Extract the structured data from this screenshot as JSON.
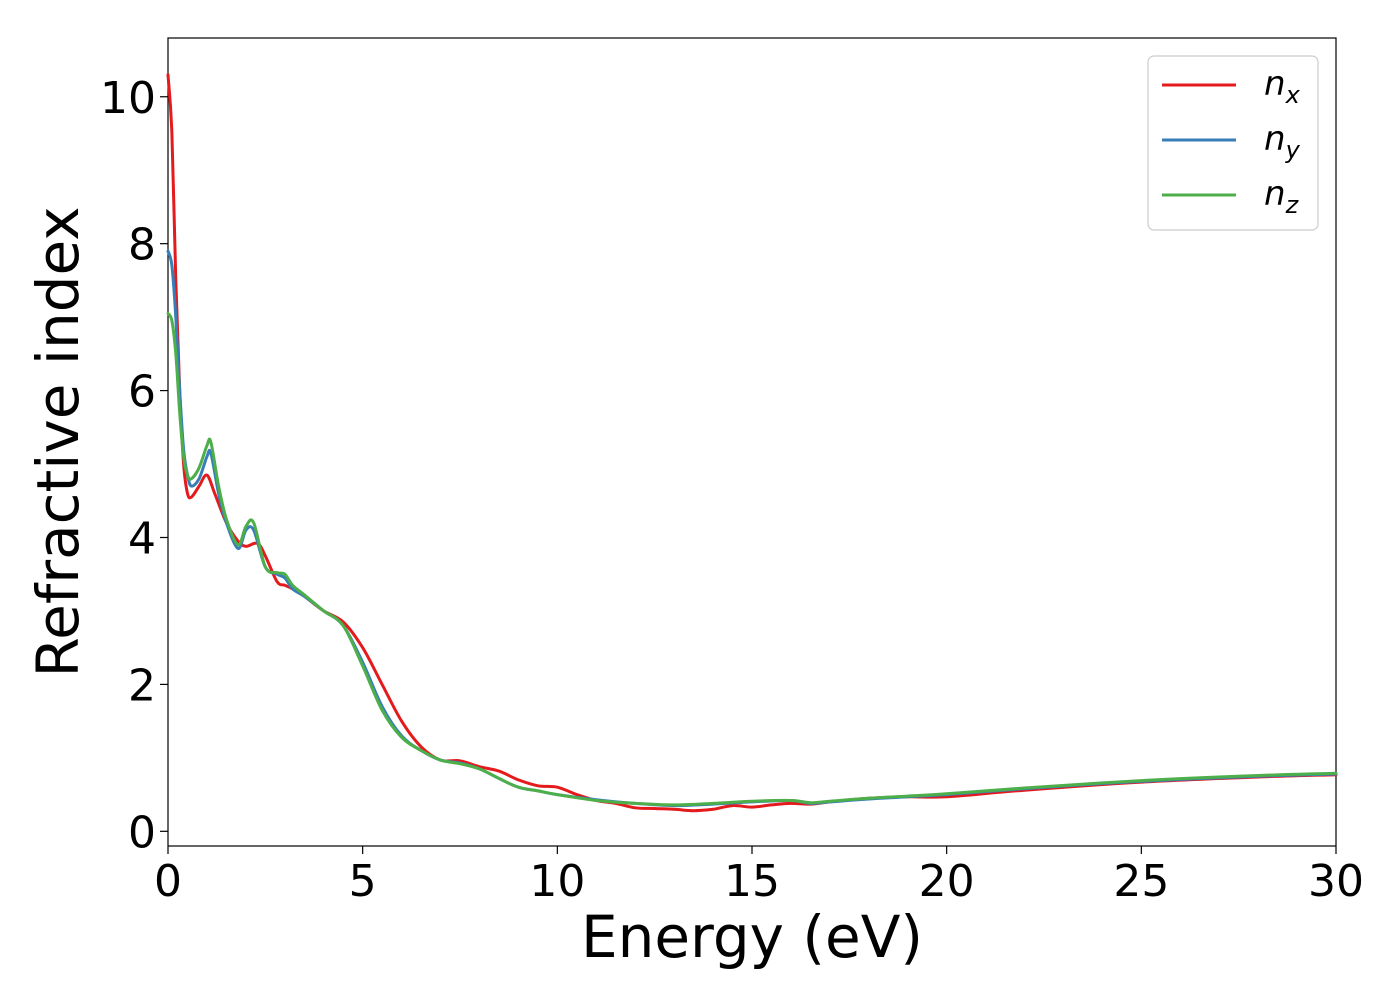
{
  "chart_data": {
    "type": "line",
    "title": "",
    "xlabel": "Energy (eV)",
    "ylabel": "Refractive index",
    "xlim": [
      0,
      30
    ],
    "ylim": [
      -0.2,
      10.8
    ],
    "xticks": [
      0,
      5,
      10,
      15,
      20,
      25,
      30
    ],
    "yticks": [
      0,
      2,
      4,
      6,
      8,
      10
    ],
    "grid": false,
    "legend_position": "top-right",
    "series": [
      {
        "name": "n_x",
        "legend_main": "n",
        "legend_sub": "x",
        "color": "#e41a1c",
        "x": [
          0,
          0.1,
          0.2,
          0.3,
          0.4,
          0.5,
          0.6,
          0.8,
          1.0,
          1.2,
          1.5,
          1.8,
          2.0,
          2.3,
          2.5,
          2.8,
          3.0,
          3.2,
          3.5,
          4.0,
          4.5,
          5.0,
          5.5,
          6.0,
          6.5,
          7.0,
          7.5,
          8.0,
          8.5,
          9.0,
          9.5,
          10.0,
          10.5,
          11.0,
          11.5,
          12.0,
          12.5,
          13.0,
          13.5,
          14.0,
          14.5,
          15.0,
          15.5,
          16.0,
          16.5,
          17.0,
          18.0,
          19.0,
          20.0,
          22.0,
          25.0,
          28.0,
          30.0
        ],
        "y": [
          10.3,
          9.5,
          7.5,
          6.0,
          5.0,
          4.6,
          4.55,
          4.7,
          4.85,
          4.6,
          4.2,
          3.95,
          3.88,
          3.92,
          3.75,
          3.4,
          3.35,
          3.3,
          3.2,
          3.0,
          2.85,
          2.5,
          2.0,
          1.5,
          1.15,
          0.97,
          0.96,
          0.88,
          0.82,
          0.7,
          0.62,
          0.6,
          0.5,
          0.42,
          0.38,
          0.32,
          0.31,
          0.3,
          0.28,
          0.3,
          0.35,
          0.33,
          0.36,
          0.38,
          0.37,
          0.4,
          0.45,
          0.47,
          0.47,
          0.56,
          0.67,
          0.74,
          0.77
        ]
      },
      {
        "name": "n_y",
        "legend_main": "n",
        "legend_sub": "y",
        "color": "#377eb8",
        "x": [
          0,
          0.1,
          0.2,
          0.3,
          0.4,
          0.5,
          0.6,
          0.8,
          1.0,
          1.1,
          1.3,
          1.5,
          1.8,
          2.0,
          2.2,
          2.5,
          2.8,
          3.0,
          3.2,
          3.5,
          4.0,
          4.5,
          5.0,
          5.5,
          6.0,
          6.5,
          7.0,
          7.5,
          8.0,
          8.5,
          9.0,
          9.5,
          10.0,
          11.0,
          12.0,
          13.0,
          14.0,
          15.0,
          16.0,
          16.5,
          17.0,
          18.0,
          19.0,
          20.0,
          22.0,
          25.0,
          28.0,
          30.0
        ],
        "y": [
          7.9,
          7.7,
          7.0,
          6.0,
          5.2,
          4.85,
          4.7,
          4.8,
          5.1,
          5.15,
          4.6,
          4.2,
          3.85,
          4.1,
          4.1,
          3.6,
          3.5,
          3.45,
          3.3,
          3.2,
          3.0,
          2.8,
          2.3,
          1.7,
          1.3,
          1.1,
          0.97,
          0.93,
          0.85,
          0.72,
          0.6,
          0.55,
          0.5,
          0.43,
          0.38,
          0.35,
          0.37,
          0.4,
          0.42,
          0.38,
          0.4,
          0.44,
          0.47,
          0.5,
          0.58,
          0.68,
          0.75,
          0.78
        ]
      },
      {
        "name": "n_z",
        "legend_main": "n",
        "legend_sub": "z",
        "color": "#4daf4a",
        "x": [
          0,
          0.1,
          0.2,
          0.3,
          0.4,
          0.5,
          0.6,
          0.8,
          1.0,
          1.1,
          1.3,
          1.5,
          1.8,
          2.0,
          2.2,
          2.5,
          2.8,
          3.0,
          3.2,
          3.5,
          4.0,
          4.5,
          5.0,
          5.5,
          6.0,
          6.5,
          7.0,
          7.5,
          8.0,
          8.5,
          9.0,
          9.5,
          10.0,
          11.0,
          12.0,
          13.0,
          14.0,
          15.0,
          16.0,
          16.5,
          17.0,
          18.0,
          19.0,
          20.0,
          22.0,
          25.0,
          28.0,
          30.0
        ],
        "y": [
          7.05,
          6.95,
          6.5,
          5.7,
          5.1,
          4.85,
          4.8,
          4.95,
          5.25,
          5.3,
          4.7,
          4.25,
          3.9,
          4.15,
          4.2,
          3.6,
          3.52,
          3.5,
          3.35,
          3.22,
          3.0,
          2.8,
          2.25,
          1.65,
          1.28,
          1.1,
          0.97,
          0.92,
          0.85,
          0.72,
          0.6,
          0.55,
          0.5,
          0.42,
          0.38,
          0.36,
          0.38,
          0.41,
          0.42,
          0.39,
          0.41,
          0.45,
          0.48,
          0.51,
          0.59,
          0.69,
          0.76,
          0.79
        ]
      }
    ]
  }
}
